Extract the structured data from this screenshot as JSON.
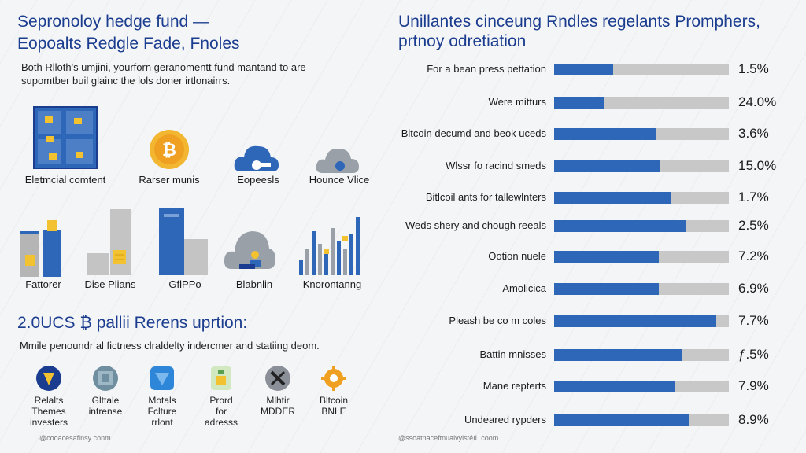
{
  "left": {
    "title_line1": "Sepronoloy hedge fund —",
    "title_line2": "Eopoalts Redgle Fade, Fnoles",
    "intro_line1": "Both Rlloth's umjini, yourforn geranomentt fund mantand to are",
    "intro_line2": "supomtber buil glainc the lols doner irtlonairrs.",
    "icons_row1": [
      {
        "label": "Eletmcial comtent",
        "icon": "wallet-grid-icon"
      },
      {
        "label": "Rarser munis",
        "icon": "bitcoin-coin-icon"
      },
      {
        "label": "Eopeesls",
        "icon": "cloud-key-icon"
      },
      {
        "label": "Hounce Vlice",
        "icon": "cloud-gray-icon"
      }
    ],
    "icons_row2": [
      {
        "label": "Fattorer",
        "icon": "bar-wallet-icon"
      },
      {
        "label": "Dise Plians",
        "icon": "bar-coin-icon"
      },
      {
        "label": "GflPPo",
        "icon": "bar-tall-icon"
      },
      {
        "label": "Blabnlin",
        "icon": "cloud-person-icon"
      },
      {
        "label": "Knorontanng",
        "icon": "mini-bars-icon"
      }
    ],
    "section_title": "2.0UCS ₿ pallii Rerens uprtion:",
    "section_desc": "Mmile penoundr al fictness clraldelty indercmer and statiing deom.",
    "features": [
      {
        "caption": "Relalts\nThemes\ninvesters",
        "icon": "shield-icon"
      },
      {
        "caption": "Glttale\nintrense",
        "icon": "globe-icon"
      },
      {
        "caption": "Motals\nFclture\nrrlont",
        "icon": "stack-icon"
      },
      {
        "caption": "Prord\nfor\nadresss",
        "icon": "document-icon"
      },
      {
        "caption": "Mlhtir\nMDDER",
        "icon": "tools-icon"
      },
      {
        "caption": "Bltcoin\nBNLE",
        "icon": "gear-icon"
      }
    ],
    "credit": "@cooacesafinsy conm"
  },
  "right": {
    "title_line1": "Unillantes cinceung Rndles regelants Promphers,",
    "title_line2": "prtnoy odretiation",
    "credit": "@ssoatnaceftnualvyistéıL.coom"
  },
  "chart_data": {
    "type": "bar",
    "orientation": "horizontal",
    "categories": [
      "For a bean press pettation",
      "Were mitturs",
      "Bitcoin decumd and beok uceds",
      "Wlssr fo racind smeds",
      "Bitlcoil ants for tallewlnters",
      "Weds shery and chough reeals",
      "Ootion nuele",
      "Amolicica",
      "Pleash be co m coles",
      "Battin mnisses",
      "Mane repterts",
      "Undeared rypders"
    ],
    "value_labels": [
      "1.5%",
      "24.0%",
      "3.6%",
      "15.0%",
      "1.7%",
      "2.5%",
      "7.2%",
      "6.9%",
      "7.7%",
      "ƒ.5%",
      "7.9%",
      "8.9%"
    ],
    "fill_fraction": [
      0.34,
      0.29,
      0.58,
      0.61,
      0.67,
      0.75,
      0.6,
      0.6,
      0.93,
      0.73,
      0.69,
      0.77
    ],
    "title": "Unillantes cinceung Rndles regelants Promphers, prtnoy odretiation",
    "colors": {
      "fill": "#2e66b8",
      "track": "#c8c8c8"
    }
  },
  "colors": {
    "accent": "#1b3d8f",
    "blue": "#2e66b8",
    "yellow": "#f2c230",
    "orange": "#f0a020",
    "gray": "#b5b5b5"
  }
}
